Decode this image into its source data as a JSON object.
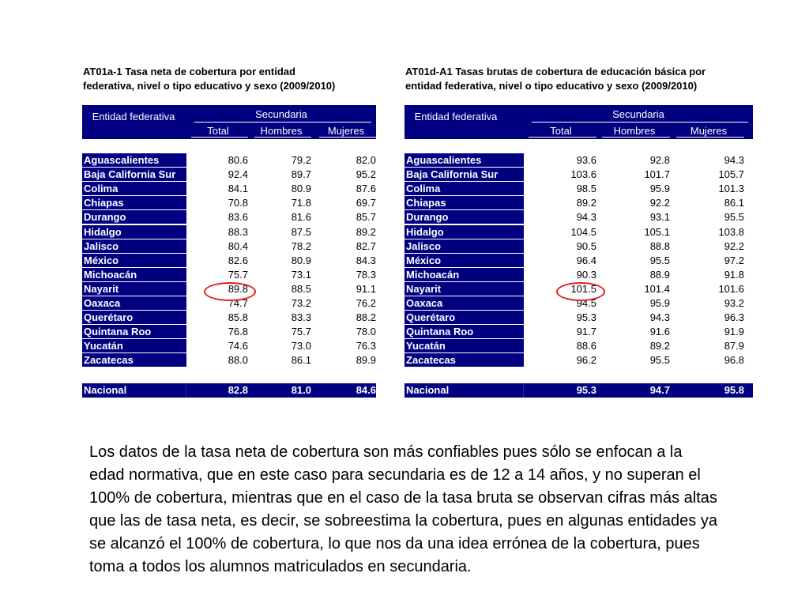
{
  "left": {
    "title": "AT01a-1 Tasa neta de cobertura por entidad\nfederativa, nivel o tipo educativo y sexo (2009/2010)",
    "header": {
      "entity": "Entidad federativa",
      "group": "Secundaria",
      "cols": [
        "Total",
        "Hombres",
        "Mujeres"
      ]
    },
    "rows": [
      {
        "name": "Aguascalientes",
        "values": [
          "80.6",
          "79.2",
          "82.0"
        ]
      },
      {
        "name": "Baja California Sur",
        "values": [
          "92.4",
          "89.7",
          "95.2"
        ]
      },
      {
        "name": "Colima",
        "values": [
          "84.1",
          "80.9",
          "87.6"
        ]
      },
      {
        "name": "Chiapas",
        "values": [
          "70.8",
          "71.8",
          "69.7"
        ]
      },
      {
        "name": "Durango",
        "values": [
          "83.6",
          "81.6",
          "85.7"
        ]
      },
      {
        "name": "Hidalgo",
        "values": [
          "88.3",
          "87.5",
          "89.2"
        ]
      },
      {
        "name": "Jalisco",
        "values": [
          "80.4",
          "78.2",
          "82.7"
        ]
      },
      {
        "name": "México",
        "values": [
          "82.6",
          "80.9",
          "84.3"
        ]
      },
      {
        "name": "Michoacán",
        "values": [
          "75.7",
          "73.1",
          "78.3"
        ]
      },
      {
        "name": "Nayarit",
        "values": [
          "89.8",
          "88.5",
          "91.1"
        ]
      },
      {
        "name": "Oaxaca",
        "values": [
          "74.7",
          "73.2",
          "76.2"
        ]
      },
      {
        "name": "Querétaro",
        "values": [
          "85.8",
          "83.3",
          "88.2"
        ]
      },
      {
        "name": "Quintana Roo",
        "values": [
          "76.8",
          "75.7",
          "78.0"
        ]
      },
      {
        "name": "Yucatán",
        "values": [
          "74.6",
          "73.0",
          "76.3"
        ]
      },
      {
        "name": "Zacatecas",
        "values": [
          "88.0",
          "86.1",
          "89.9"
        ]
      }
    ],
    "national": {
      "name": "Nacional",
      "values": [
        "82.8",
        "81.0",
        "84.6"
      ]
    }
  },
  "right": {
    "title": "AT01d-A1 Tasas brutas de cobertura de educación básica por\nentidad federativa, nivel o tipo educativo y sexo (2009/2010)",
    "header": {
      "entity": "Entidad federativa",
      "group": "Secundaria",
      "cols": [
        "Total",
        "Hombres",
        "Mujeres"
      ]
    },
    "rows": [
      {
        "name": "Aguascalientes",
        "values": [
          "93.6",
          "92.8",
          "94.3"
        ]
      },
      {
        "name": "Baja California Sur",
        "values": [
          "103.6",
          "101.7",
          "105.7"
        ]
      },
      {
        "name": "Colima",
        "values": [
          "98.5",
          "95.9",
          "101.3"
        ]
      },
      {
        "name": "Chiapas",
        "values": [
          "89.2",
          "92.2",
          "86.1"
        ]
      },
      {
        "name": "Durango",
        "values": [
          "94.3",
          "93.1",
          "95.5"
        ]
      },
      {
        "name": "Hidalgo",
        "values": [
          "104.5",
          "105.1",
          "103.8"
        ]
      },
      {
        "name": "Jalisco",
        "values": [
          "90.5",
          "88.8",
          "92.2"
        ]
      },
      {
        "name": "México",
        "values": [
          "96.4",
          "95.5",
          "97.2"
        ]
      },
      {
        "name": "Michoacán",
        "values": [
          "90.3",
          "88.9",
          "91.8"
        ]
      },
      {
        "name": "Nayarit",
        "values": [
          "101.5",
          "101.4",
          "101.6"
        ]
      },
      {
        "name": "Oaxaca",
        "values": [
          "94.5",
          "95.9",
          "93.2"
        ]
      },
      {
        "name": "Querétaro",
        "values": [
          "95.3",
          "94.3",
          "96.3"
        ]
      },
      {
        "name": "Quintana Roo",
        "values": [
          "91.7",
          "91.6",
          "91.9"
        ]
      },
      {
        "name": "Yucatán",
        "values": [
          "88.6",
          "89.2",
          "87.9"
        ]
      },
      {
        "name": "Zacatecas",
        "values": [
          "96.2",
          "95.5",
          "96.8"
        ]
      }
    ],
    "national": {
      "name": "Nacional",
      "values": [
        "95.3",
        "94.7",
        "95.8"
      ]
    }
  },
  "highlight_color": "#e0201b",
  "header_color": "#000080",
  "paragraph": "Los datos de la tasa neta de cobertura son más confiables pues sólo se enfocan a la edad normativa, que en este caso para secundaria es de 12 a 14 años, y no superan el 100% de cobertura, mientras que en el caso de la tasa bruta se observan cifras más altas que las de tasa neta, es decir, se sobreestima la cobertura, pues en algunas entidades ya se alcanzó el 100% de cobertura, lo que nos da una idea errónea de la cobertura, pues toma a todos los alumnos matriculados en secundaria."
}
